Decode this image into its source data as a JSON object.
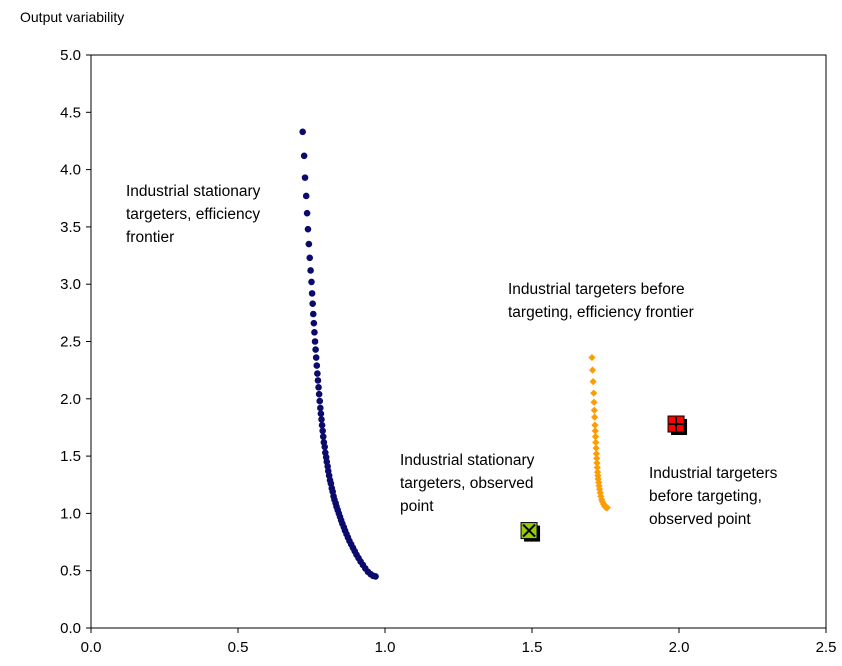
{
  "chart_data": {
    "type": "scatter",
    "title": "",
    "xlabel": "",
    "ylabel": "Output variability",
    "xlim": [
      0,
      2.5
    ],
    "ylim": [
      0,
      5
    ],
    "x_ticks": [
      "0.0",
      "0.5",
      "1.0",
      "1.5",
      "2.0",
      "2.5"
    ],
    "y_ticks": [
      "0.0",
      "0.5",
      "1.0",
      "1.5",
      "2.0",
      "2.5",
      "3.0",
      "3.5",
      "4.0",
      "4.5",
      "5.0"
    ],
    "grid": false,
    "legend": "none",
    "series": [
      {
        "color": "#0b0b6e",
        "marker": "circle",
        "points": [
          [
            0.72,
            4.33
          ],
          [
            0.725,
            4.12
          ],
          [
            0.728,
            3.93
          ],
          [
            0.732,
            3.77
          ],
          [
            0.735,
            3.62
          ],
          [
            0.738,
            3.48
          ],
          [
            0.741,
            3.35
          ],
          [
            0.744,
            3.23
          ],
          [
            0.747,
            3.12
          ],
          [
            0.75,
            3.02
          ],
          [
            0.752,
            2.92
          ],
          [
            0.754,
            2.83
          ],
          [
            0.756,
            2.74
          ],
          [
            0.758,
            2.66
          ],
          [
            0.76,
            2.58
          ],
          [
            0.762,
            2.5
          ],
          [
            0.764,
            2.43
          ],
          [
            0.766,
            2.36
          ],
          [
            0.768,
            2.29
          ],
          [
            0.77,
            2.22
          ],
          [
            0.772,
            2.16
          ],
          [
            0.774,
            2.1
          ],
          [
            0.776,
            2.04
          ],
          [
            0.778,
            1.98
          ],
          [
            0.78,
            1.92
          ],
          [
            0.782,
            1.87
          ],
          [
            0.784,
            1.82
          ],
          [
            0.786,
            1.77
          ],
          [
            0.788,
            1.72
          ],
          [
            0.79,
            1.67
          ],
          [
            0.792,
            1.62
          ],
          [
            0.795,
            1.58
          ],
          [
            0.797,
            1.53
          ],
          [
            0.8,
            1.49
          ],
          [
            0.802,
            1.45
          ],
          [
            0.805,
            1.41
          ],
          [
            0.807,
            1.37
          ],
          [
            0.81,
            1.33
          ],
          [
            0.813,
            1.29
          ],
          [
            0.816,
            1.26
          ],
          [
            0.819,
            1.22
          ],
          [
            0.822,
            1.19
          ],
          [
            0.825,
            1.15
          ],
          [
            0.828,
            1.12
          ],
          [
            0.832,
            1.09
          ],
          [
            0.835,
            1.06
          ],
          [
            0.839,
            1.03
          ],
          [
            0.843,
            1.0
          ],
          [
            0.847,
            0.97
          ],
          [
            0.851,
            0.94
          ],
          [
            0.855,
            0.91
          ],
          [
            0.86,
            0.88
          ],
          [
            0.864,
            0.85
          ],
          [
            0.869,
            0.82
          ],
          [
            0.874,
            0.79
          ],
          [
            0.879,
            0.76
          ],
          [
            0.885,
            0.73
          ],
          [
            0.891,
            0.7
          ],
          [
            0.897,
            0.67
          ],
          [
            0.903,
            0.64
          ],
          [
            0.91,
            0.61
          ],
          [
            0.917,
            0.58
          ],
          [
            0.925,
            0.55
          ],
          [
            0.933,
            0.52
          ],
          [
            0.942,
            0.49
          ],
          [
            0.951,
            0.47
          ],
          [
            0.96,
            0.455
          ],
          [
            0.968,
            0.45
          ]
        ]
      },
      {
        "color": "#ff9c00",
        "marker": "diamond",
        "points": [
          [
            1.704,
            2.36
          ],
          [
            1.706,
            2.25
          ],
          [
            1.708,
            2.15
          ],
          [
            1.71,
            2.05
          ],
          [
            1.711,
            1.97
          ],
          [
            1.712,
            1.9
          ],
          [
            1.713,
            1.84
          ],
          [
            1.714,
            1.77
          ],
          [
            1.715,
            1.72
          ],
          [
            1.716,
            1.67
          ],
          [
            1.717,
            1.62
          ],
          [
            1.718,
            1.57
          ],
          [
            1.719,
            1.52
          ],
          [
            1.72,
            1.48
          ],
          [
            1.721,
            1.44
          ],
          [
            1.722,
            1.4
          ],
          [
            1.723,
            1.36
          ],
          [
            1.724,
            1.33
          ],
          [
            1.725,
            1.3
          ],
          [
            1.727,
            1.27
          ],
          [
            1.728,
            1.24
          ],
          [
            1.73,
            1.21
          ],
          [
            1.732,
            1.18
          ],
          [
            1.734,
            1.15
          ],
          [
            1.737,
            1.12
          ],
          [
            1.74,
            1.1
          ],
          [
            1.744,
            1.08
          ],
          [
            1.748,
            1.06
          ],
          [
            1.752,
            1.05
          ],
          [
            1.756,
            1.05
          ]
        ]
      },
      {
        "color": "#99cc00",
        "marker": "x-square",
        "points": [
          [
            1.49,
            0.85
          ]
        ]
      },
      {
        "color": "#ff0000",
        "marker": "plus-square",
        "points": [
          [
            1.99,
            1.78
          ]
        ]
      }
    ],
    "annotations": [
      {
        "lines": [
          "Industrial stationary",
          "targeters, efficiency",
          "frontier"
        ]
      },
      {
        "lines": [
          "Industrial targeters before",
          "targeting, efficiency frontier"
        ]
      },
      {
        "lines": [
          "Industrial stationary",
          "targeters, observed",
          "point"
        ]
      },
      {
        "lines": [
          "Industrial targeters",
          "before targeting,",
          "observed point"
        ]
      }
    ]
  }
}
